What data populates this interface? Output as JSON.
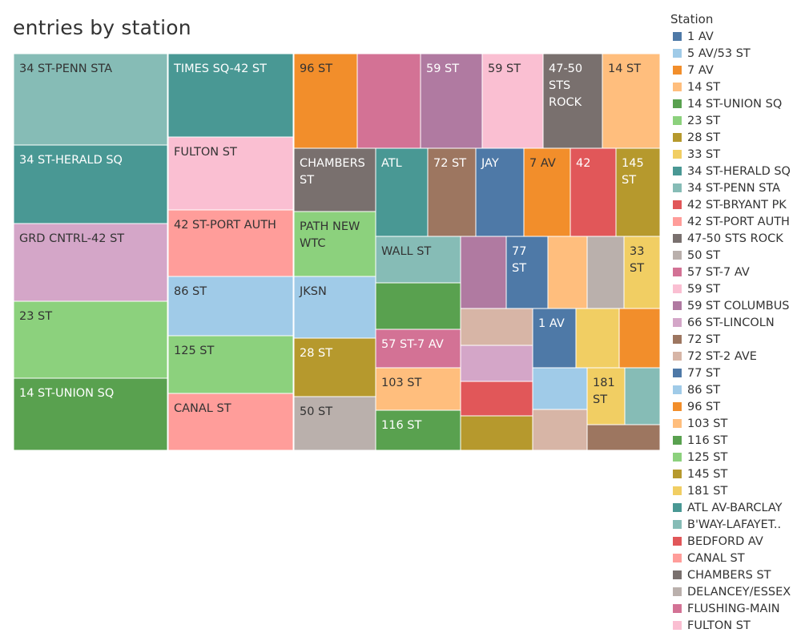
{
  "chart_data": {
    "type": "treemap",
    "title": "entries by station",
    "legend_title": "Station",
    "legend_placement": "right",
    "legend": [
      {
        "name": "1 AV",
        "color": "#4e79a7"
      },
      {
        "name": "5 AV/53 ST",
        "color": "#a0cbe8"
      },
      {
        "name": "7 AV",
        "color": "#f28e2b"
      },
      {
        "name": "14 ST",
        "color": "#ffbe7d"
      },
      {
        "name": "14 ST-UNION SQ",
        "color": "#59a14f"
      },
      {
        "name": "23 ST",
        "color": "#8cd17d"
      },
      {
        "name": "28 ST",
        "color": "#b6992d"
      },
      {
        "name": "33 ST",
        "color": "#f1ce63"
      },
      {
        "name": "34 ST-HERALD SQ",
        "color": "#499894"
      },
      {
        "name": "34 ST-PENN STA",
        "color": "#86bcb6"
      },
      {
        "name": "42 ST-BRYANT PK",
        "color": "#e15759"
      },
      {
        "name": "42 ST-PORT AUTH",
        "color": "#ff9d9a"
      },
      {
        "name": "47-50 STS ROCK",
        "color": "#79706e"
      },
      {
        "name": "50 ST",
        "color": "#bab0ac"
      },
      {
        "name": "57 ST-7 AV",
        "color": "#d37295"
      },
      {
        "name": "59 ST",
        "color": "#fabfd2"
      },
      {
        "name": "59 ST COLUMBUS",
        "color": "#b07aa1"
      },
      {
        "name": "66 ST-LINCOLN",
        "color": "#d4a6c8"
      },
      {
        "name": "72 ST",
        "color": "#9d7660"
      },
      {
        "name": "72 ST-2 AVE",
        "color": "#d7b5a6"
      },
      {
        "name": "77 ST",
        "color": "#4e79a7"
      },
      {
        "name": "86 ST",
        "color": "#a0cbe8"
      },
      {
        "name": "96 ST",
        "color": "#f28e2b"
      },
      {
        "name": "103 ST",
        "color": "#ffbe7d"
      },
      {
        "name": "116 ST",
        "color": "#59a14f"
      },
      {
        "name": "125 ST",
        "color": "#8cd17d"
      },
      {
        "name": "145 ST",
        "color": "#b6992d"
      },
      {
        "name": "181 ST",
        "color": "#f1ce63"
      },
      {
        "name": "ATL AV-BARCLAY",
        "color": "#499894"
      },
      {
        "name": "B'WAY-LAFAYET..",
        "color": "#86bcb6"
      },
      {
        "name": "BEDFORD AV",
        "color": "#e15759"
      },
      {
        "name": "CANAL ST",
        "color": "#ff9d9a"
      },
      {
        "name": "CHAMBERS ST",
        "color": "#79706e"
      },
      {
        "name": "DELANCEY/ESSEX",
        "color": "#bab0ac"
      },
      {
        "name": "FLUSHING-MAIN",
        "color": "#d37295"
      },
      {
        "name": "FULTON ST",
        "color": "#fabfd2"
      }
    ],
    "tiles": [
      {
        "label": "34 ST-PENN STA",
        "color": "#86bcb6"
      },
      {
        "label": "34 ST-HERALD SQ",
        "color": "#499894"
      },
      {
        "label": "GRD CNTRL-42 ST",
        "color": "#d4a6c8"
      },
      {
        "label": "23 ST",
        "color": "#8cd17d"
      },
      {
        "label": "14 ST-UNION SQ",
        "color": "#59a14f"
      },
      {
        "label": "TIMES SQ-42 ST",
        "color": "#499894"
      },
      {
        "label": "FULTON ST",
        "color": "#fabfd2"
      },
      {
        "label": "42 ST-PORT AUTH",
        "color": "#ff9d9a"
      },
      {
        "label": "86 ST",
        "color": "#a0cbe8"
      },
      {
        "label": "125 ST",
        "color": "#8cd17d"
      },
      {
        "label": "CANAL ST",
        "color": "#ff9d9a"
      },
      {
        "label": "96 ST",
        "color": "#f28e2b"
      },
      {
        "label": "",
        "color": "#d37295"
      },
      {
        "label": "59 ST",
        "color": "#b07aa1"
      },
      {
        "label": "59 ST",
        "color": "#fabfd2"
      },
      {
        "label": "47-50 STS ROCK",
        "color": "#79706e"
      },
      {
        "label": "14 ST",
        "color": "#ffbe7d"
      },
      {
        "label": "CHAMBERS ST",
        "color": "#79706e"
      },
      {
        "label": "ATL",
        "color": "#499894"
      },
      {
        "label": "72 ST",
        "color": "#9d7660"
      },
      {
        "label": "JAY",
        "color": "#4e79a7"
      },
      {
        "label": "7 AV",
        "color": "#f28e2b"
      },
      {
        "label": "42",
        "color": "#e15759"
      },
      {
        "label": "145 ST",
        "color": "#b6992d"
      },
      {
        "label": "PATH NEW WTC",
        "color": "#8cd17d"
      },
      {
        "label": "JKSN",
        "color": "#a0cbe8"
      },
      {
        "label": "28 ST",
        "color": "#b6992d"
      },
      {
        "label": "50 ST",
        "color": "#bab0ac"
      },
      {
        "label": "WALL ST",
        "color": "#86bcb6"
      },
      {
        "label": "",
        "color": "#59a14f"
      },
      {
        "label": "57 ST-7 AV",
        "color": "#d37295"
      },
      {
        "label": "103 ST",
        "color": "#ffbe7d"
      },
      {
        "label": "116 ST",
        "color": "#59a14f"
      },
      {
        "label": "",
        "color": "#b07aa1"
      },
      {
        "label": "77 ST",
        "color": "#4e79a7"
      },
      {
        "label": "",
        "color": "#ffbe7d"
      },
      {
        "label": "",
        "color": "#bab0ac"
      },
      {
        "label": "33 ST",
        "color": "#f1ce63"
      },
      {
        "label": "",
        "color": "#d7b5a6"
      },
      {
        "label": "",
        "color": "#d4a6c8"
      },
      {
        "label": "",
        "color": "#e15759"
      },
      {
        "label": "",
        "color": "#b6992d"
      },
      {
        "label": "1 AV",
        "color": "#4e79a7"
      },
      {
        "label": "",
        "color": "#f1ce63"
      },
      {
        "label": "",
        "color": "#f28e2b"
      },
      {
        "label": "",
        "color": "#a0cbe8"
      },
      {
        "label": "181 ST",
        "color": "#f1ce63"
      },
      {
        "label": "",
        "color": "#86bcb6"
      },
      {
        "label": "",
        "color": "#d7b5a6"
      },
      {
        "label": "",
        "color": "#9d7660"
      }
    ]
  }
}
